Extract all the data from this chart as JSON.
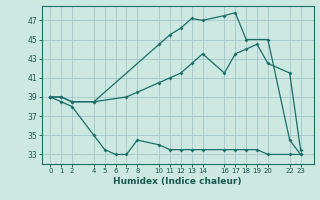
{
  "xlabel": "Humidex (Indice chaleur)",
  "bg_color": "#cce8e0",
  "grid_color": "#aacccc",
  "line_color": "#1a7068",
  "xlim": [
    -0.8,
    24.2
  ],
  "ylim": [
    32.0,
    48.5
  ],
  "xticks": [
    0,
    1,
    2,
    4,
    5,
    6,
    7,
    8,
    10,
    11,
    12,
    13,
    14,
    16,
    17,
    18,
    19,
    20,
    22,
    23
  ],
  "yticks": [
    33,
    35,
    37,
    39,
    41,
    43,
    45,
    47
  ],
  "line1_x": [
    0,
    1,
    2,
    4,
    10,
    11,
    12,
    13,
    14,
    16,
    17,
    18,
    20,
    22,
    23
  ],
  "line1_y": [
    39.0,
    39.0,
    38.5,
    38.5,
    44.5,
    45.5,
    46.2,
    47.2,
    47.0,
    47.5,
    47.8,
    45.0,
    45.0,
    34.5,
    33.0
  ],
  "line2_x": [
    0,
    1,
    2,
    4,
    7,
    8,
    10,
    11,
    12,
    13,
    14,
    16,
    17,
    18,
    19,
    20,
    22,
    23
  ],
  "line2_y": [
    39.0,
    39.0,
    38.5,
    38.5,
    39.0,
    39.5,
    40.5,
    41.0,
    41.5,
    42.5,
    43.5,
    41.5,
    43.5,
    44.0,
    44.5,
    42.5,
    41.5,
    33.5
  ],
  "line3_x": [
    0,
    1,
    2,
    4,
    5,
    6,
    7,
    8,
    10,
    11,
    12,
    13,
    14,
    16,
    17,
    18,
    19,
    20,
    22,
    23
  ],
  "line3_y": [
    39.0,
    38.5,
    38.0,
    35.0,
    33.5,
    33.0,
    33.0,
    34.5,
    34.0,
    33.5,
    33.5,
    33.5,
    33.5,
    33.5,
    33.5,
    33.5,
    33.5,
    33.0,
    33.0,
    33.0
  ]
}
